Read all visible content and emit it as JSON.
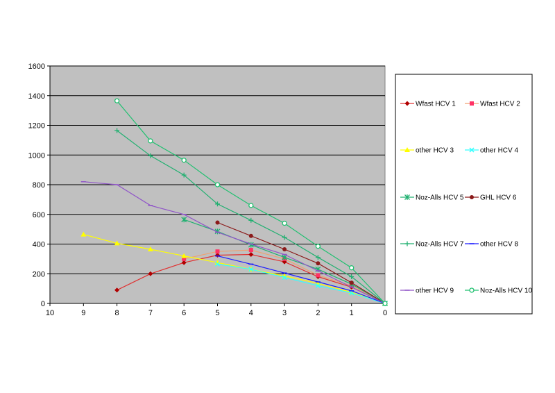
{
  "chart_data": {
    "type": "line",
    "title": "",
    "xlabel": "",
    "ylabel": "",
    "x_reversed": true,
    "xlim": [
      0,
      10
    ],
    "ylim": [
      0,
      1600
    ],
    "x_ticks": [
      "10",
      "9",
      "8",
      "7",
      "6",
      "5",
      "4",
      "3",
      "2",
      "1",
      "0"
    ],
    "y_ticks": [
      "0",
      "200",
      "400",
      "600",
      "800",
      "1000",
      "1200",
      "1400",
      "1600"
    ],
    "y_tick_values": [
      0,
      200,
      400,
      600,
      800,
      1000,
      1200,
      1400,
      1600
    ],
    "grid": true,
    "plot_background": "#c0c0c0",
    "legend_position": "right",
    "series": [
      {
        "name": "Wfast HCV 1",
        "color": "#e03030",
        "marker": "diamond",
        "marker_color": "#b00000",
        "x": [
          8,
          7,
          6,
          5,
          4,
          3,
          2,
          1,
          0
        ],
        "y": [
          90,
          200,
          275,
          325,
          330,
          280,
          180,
          110,
          0
        ]
      },
      {
        "name": "Wfast HCV 2",
        "color": "#f0a070",
        "marker": "square",
        "marker_color": "#ff3366",
        "x": [
          6,
          5,
          4,
          3,
          2,
          1,
          0
        ],
        "y": [
          300,
          350,
          360,
          300,
          190,
          120,
          0
        ]
      },
      {
        "name": "other HCV 3",
        "color": "#ffff00",
        "marker": "triangle",
        "marker_color": "#ffff00",
        "x": [
          9,
          8,
          7,
          6,
          5,
          4,
          3,
          2,
          1,
          0
        ],
        "y": [
          465,
          405,
          365,
          320,
          275,
          230,
          185,
          135,
          75,
          0
        ]
      },
      {
        "name": "other HCV 4",
        "color": "#33ffff",
        "marker": "x",
        "marker_color": "#33ffff",
        "x": [
          5,
          4,
          3,
          2,
          1,
          0
        ],
        "y": [
          265,
          230,
          175,
          120,
          70,
          0
        ]
      },
      {
        "name": "Noz-Alls HCV 5",
        "color": "#20b070",
        "marker": "star",
        "marker_color": "#20b070",
        "x": [
          6,
          5,
          4,
          3,
          2,
          1,
          0
        ],
        "y": [
          565,
          485,
          395,
          310,
          230,
          130,
          0
        ]
      },
      {
        "name": "GHL HCV 6",
        "color": "#8b1a1a",
        "marker": "circle",
        "marker_color": "#8b1a1a",
        "x": [
          5,
          4,
          3,
          2,
          1,
          0
        ],
        "y": [
          545,
          455,
          365,
          270,
          140,
          0
        ]
      },
      {
        "name": "Noz-Alls HCV 7",
        "color": "#20b070",
        "marker": "plus",
        "marker_color": "#20b070",
        "x": [
          8,
          7,
          6,
          5,
          4,
          3,
          2,
          1,
          0
        ],
        "y": [
          1165,
          995,
          865,
          670,
          560,
          445,
          310,
          180,
          0
        ]
      },
      {
        "name": "other HCV 8",
        "color": "#1a1aff",
        "marker": "dash",
        "marker_color": "#1a1aff",
        "x": [
          5,
          4,
          3,
          2,
          1,
          0
        ],
        "y": [
          320,
          265,
          205,
          145,
          85,
          0
        ]
      },
      {
        "name": "other HCV 9",
        "color": "#9055c8",
        "marker": "dash",
        "marker_color": "#9055c8",
        "x": [
          9,
          8,
          7,
          6,
          5,
          4,
          3,
          2,
          1,
          0
        ],
        "y": [
          820,
          800,
          660,
          600,
          480,
          400,
          330,
          220,
          110,
          0
        ]
      },
      {
        "name": "Noz-Alls HCV 10",
        "color": "#20c070",
        "marker": "open-circle",
        "marker_color": "#20c070",
        "x": [
          8,
          7,
          6,
          5,
          4,
          3,
          2,
          1,
          0
        ],
        "y": [
          1365,
          1095,
          965,
          800,
          660,
          540,
          385,
          240,
          0
        ]
      }
    ]
  }
}
